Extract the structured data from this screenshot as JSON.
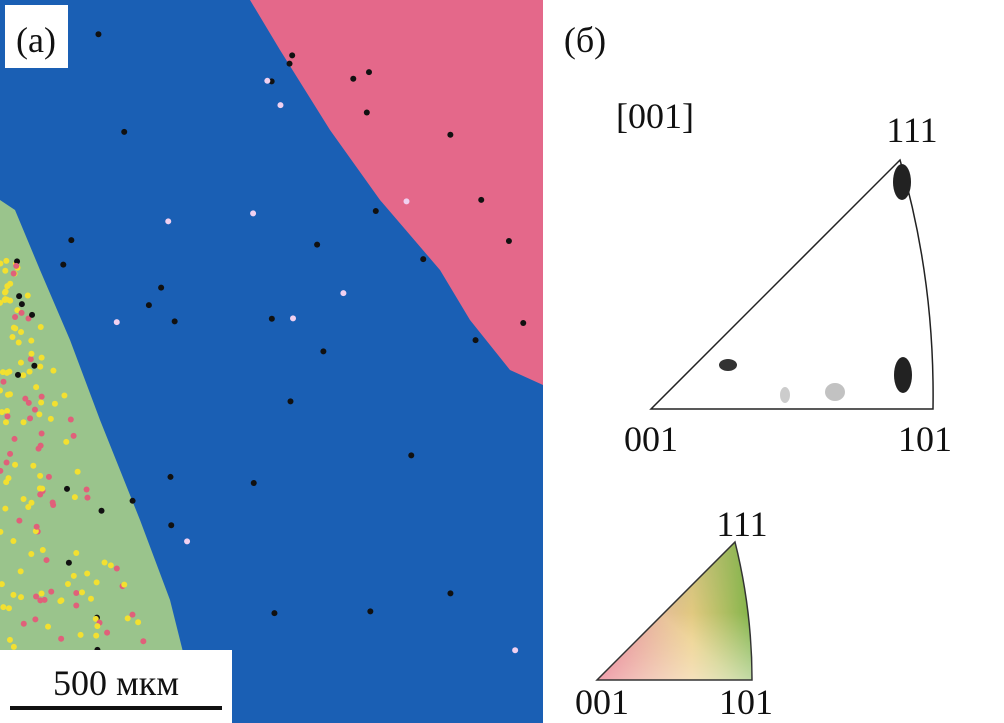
{
  "panel_a": {
    "label": "(а)",
    "scale_bar": "500 мкм"
  },
  "panel_b": {
    "label": "(б)",
    "direction": "[001]",
    "pole_figure": {
      "top": "111",
      "left": "001",
      "right": "101"
    },
    "color_key": {
      "top": "111",
      "left": "001",
      "right": "101"
    }
  }
}
